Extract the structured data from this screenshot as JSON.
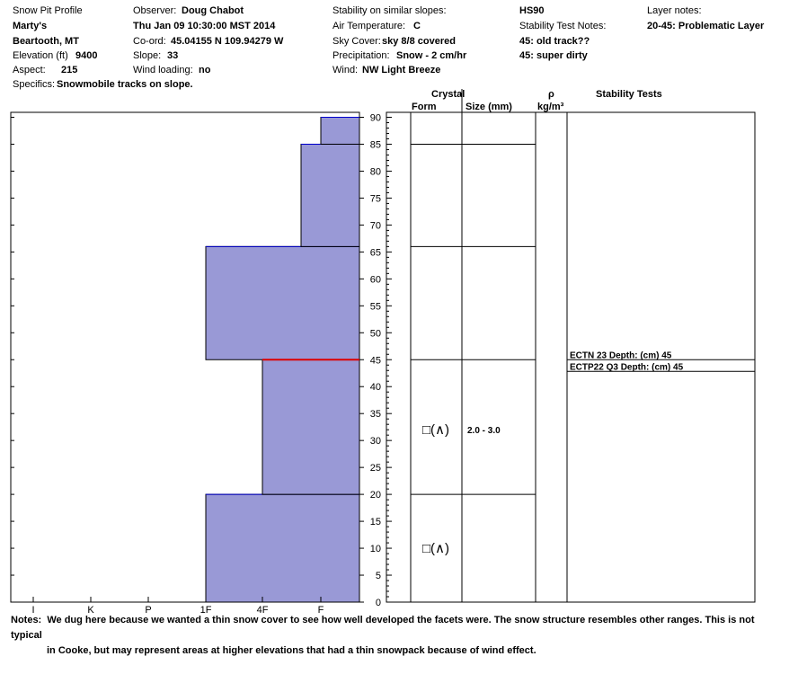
{
  "header": {
    "title": "Snow Pit Profile",
    "location": "Marty's",
    "region": "Beartooth, MT",
    "elevation_label": "Elevation (ft)",
    "elevation_value": "9400",
    "aspect_label": "Aspect:",
    "aspect_value": "215",
    "specifics_label": "Specifics:",
    "specifics_value": "Snowmobile tracks on slope.",
    "observer_label": "Observer:",
    "observer_value": "Doug Chabot",
    "datetime": "Thu Jan 09 10:30:00 MST 2014",
    "coord_label": "Co-ord:",
    "coord_value": "45.04155 N 109.94279 W",
    "slope_label": "Slope:",
    "slope_value": "33",
    "wind_loading_label": "Wind loading:",
    "wind_loading_value": "no",
    "stability_similar_label": "Stability on similar slopes:",
    "air_temp_label": "Air Temperature:",
    "air_temp_value": "C",
    "sky_cover_label": "Sky Cover:",
    "sky_cover_value": "sky 8/8 covered",
    "precip_label": "Precipitation:",
    "precip_value": "Snow - 2 cm/hr",
    "wind_label": "Wind:",
    "wind_value": "NW Light Breeze",
    "hs": "HS90",
    "stability_notes_label": "Stability Test Notes:",
    "stability_note_1": "45: old track??",
    "stability_note_2": "45: super dirty",
    "layer_notes_label": "Layer notes:",
    "layer_note_1": "20-45: Problematic Layer"
  },
  "columns": {
    "crystal": "Crystal",
    "form": "Form",
    "size": "Size (mm)",
    "density": "ρ",
    "density_unit": "kg/m³",
    "stability_tests": "Stability Tests"
  },
  "notes": {
    "label": "Notes:",
    "text": "We dug here because we wanted a thin snow cover to see how well developed the facets were.  The snow structure resembles other ranges.  This is not typical",
    "text2": "in Cooke, but may represent areas at higher elevations that had a thin snowpack because of wind effect."
  },
  "colors": {
    "fill": "#9999d6",
    "layer_line": "#0000cc",
    "weak_layer": "#dd0000"
  },
  "chart_data": {
    "type": "bar",
    "orientation": "horizontal-step",
    "y_axis": {
      "label": "",
      "range": [
        0,
        90
      ],
      "ticks": [
        0,
        5,
        10,
        15,
        20,
        25,
        30,
        35,
        40,
        45,
        50,
        55,
        60,
        65,
        70,
        75,
        80,
        85,
        90
      ]
    },
    "x_axis": {
      "label": "",
      "categories": [
        "I",
        "K",
        "P",
        "1F",
        "4F",
        "F"
      ]
    },
    "hardness_profile": [
      {
        "bottom": 0,
        "top": 20,
        "hardness": "1F",
        "value": 3.0
      },
      {
        "bottom": 20,
        "top": 45,
        "hardness": "4F",
        "value": 2.0
      },
      {
        "bottom": 45,
        "top": 66,
        "hardness": "1F",
        "value": 3.0
      },
      {
        "bottom": 66,
        "top": 85,
        "hardness": "F",
        "value": 1.0
      },
      {
        "bottom": 85,
        "top": 90,
        "hardness": "F",
        "value": 0.7
      }
    ],
    "weak_layer_depth": 45,
    "layer_boundaries": [
      20,
      45,
      66,
      85
    ],
    "crystals": [
      {
        "depth": 32,
        "form": "□(∧)",
        "size": "2.0 - 3.0"
      },
      {
        "depth": 10,
        "form": "□(∧)",
        "size": ""
      }
    ],
    "stability_tests": [
      {
        "depth": 45,
        "text": "ECTN 23   Depth: (cm) 45"
      },
      {
        "depth": 45,
        "text": "ECTP22 Q3 Depth: (cm) 45"
      }
    ]
  }
}
